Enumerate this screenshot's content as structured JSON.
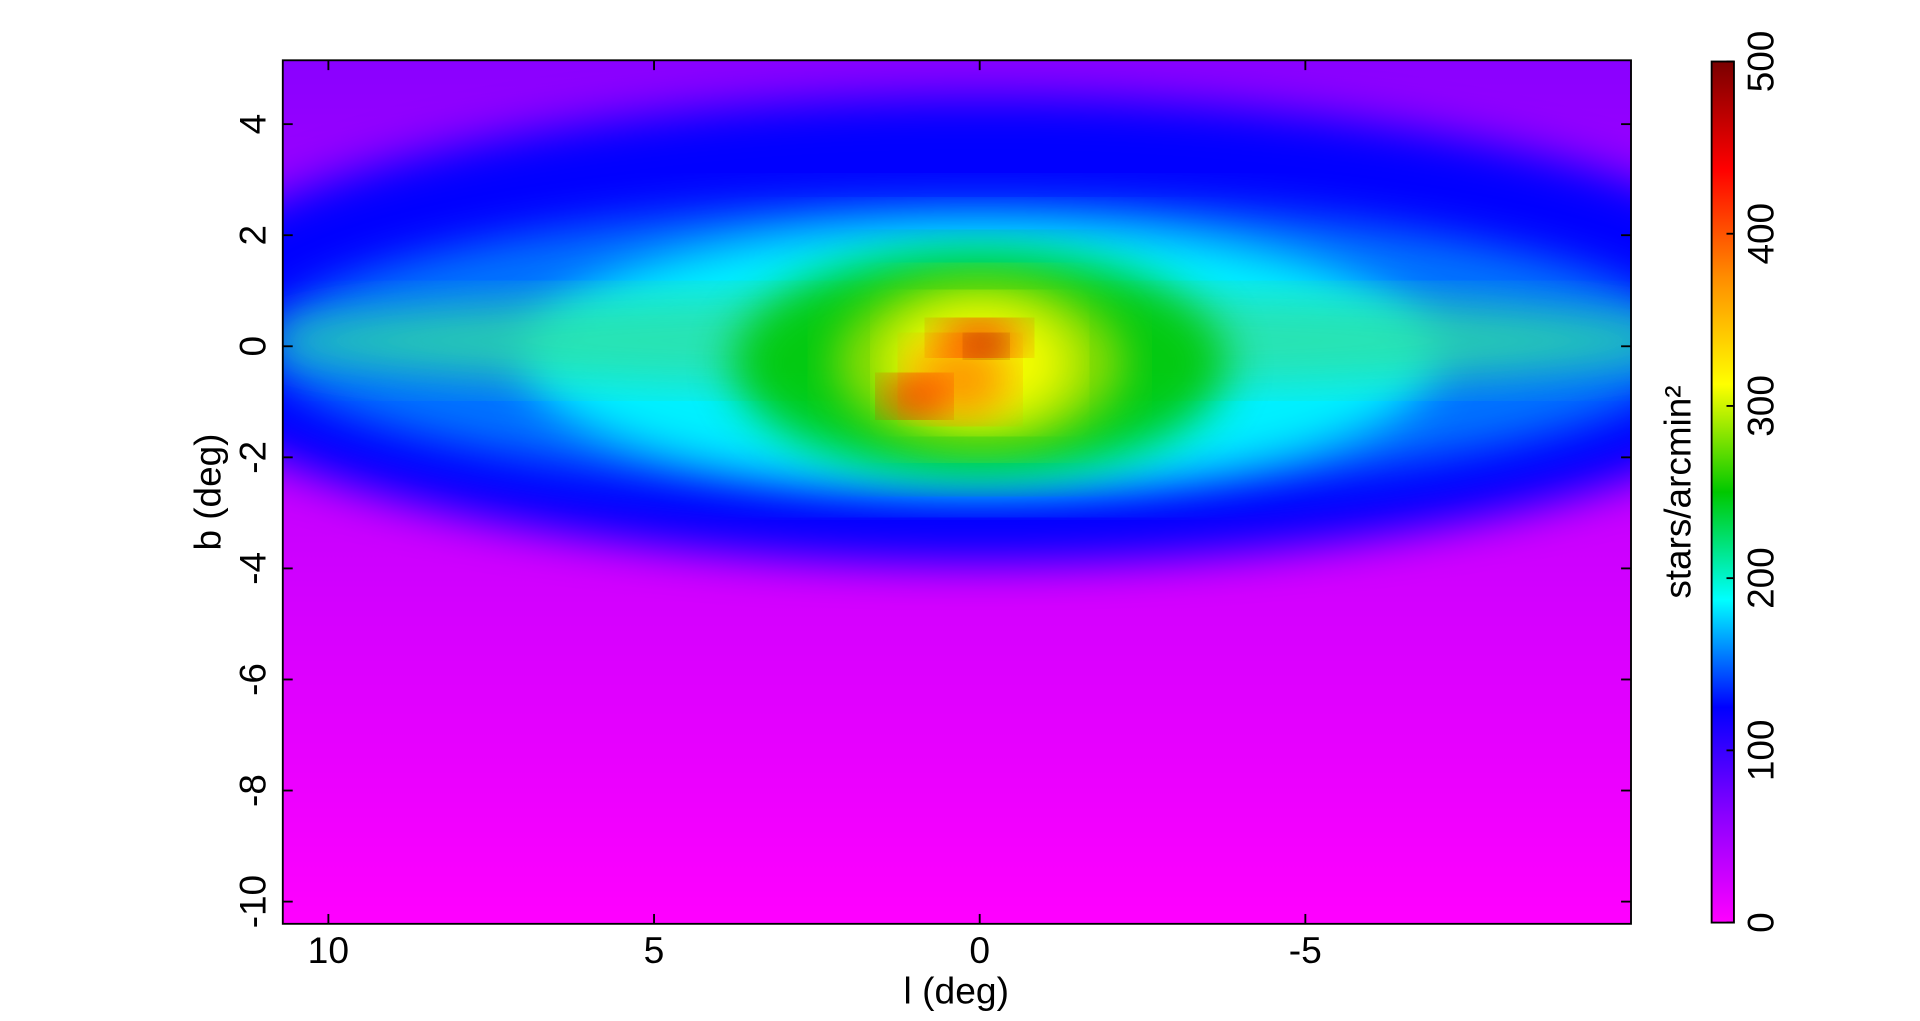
{
  "chart_data": {
    "type": "heatmap",
    "xlabel": "l (deg)",
    "ylabel": "b (deg)",
    "xlim": [
      10.7,
      -10
    ],
    "xticks": [
      10,
      5,
      0,
      -5
    ],
    "ylim": [
      -10.4,
      5.15
    ],
    "yticks": [
      4,
      2,
      0,
      -2,
      -4,
      -6,
      -8,
      -10
    ],
    "colormap": [
      "#ff00ff",
      "#8a00ff",
      "#0000ff",
      "#00ffff",
      "#00c800",
      "#ffff00",
      "#ff8c00",
      "#ff0000",
      "#7a0000"
    ],
    "colorbar": {
      "label": "stars/arcmin²",
      "lim": [
        0,
        500
      ],
      "ticks": [
        0,
        100,
        200,
        300,
        400,
        500
      ]
    }
  }
}
